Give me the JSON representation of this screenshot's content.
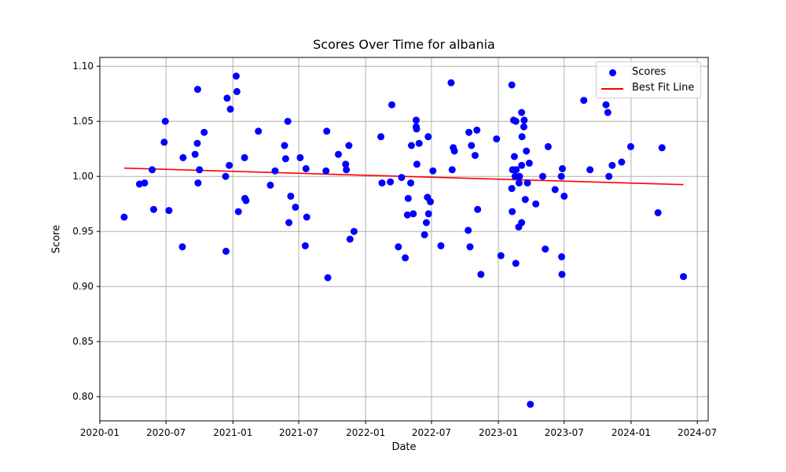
{
  "chart_data": {
    "type": "scatter",
    "title": "Scores Over Time for albania",
    "xlabel": "Date",
    "ylabel": "Score",
    "xlim": [
      "2020-01-01",
      "2024-07-31"
    ],
    "ylim": [
      0.778,
      1.108
    ],
    "x_ticks": [
      "2020-01",
      "2020-07",
      "2021-01",
      "2021-07",
      "2022-01",
      "2022-07",
      "2023-01",
      "2023-07",
      "2024-01",
      "2024-07"
    ],
    "y_ticks": [
      "0.80",
      "0.85",
      "0.90",
      "0.95",
      "1.00",
      "1.05",
      "1.10"
    ],
    "grid": true,
    "legend_position": "top-right",
    "colors": {
      "scores": "#0000ff",
      "best_fit": "#ff0000",
      "grid": "#b0b0b0"
    },
    "series": [
      {
        "name": "Scores",
        "kind": "scatter",
        "points": [
          [
            "2020-03-08",
            0.963
          ],
          [
            "2020-04-19",
            0.993
          ],
          [
            "2020-05-03",
            0.994
          ],
          [
            "2020-05-24",
            1.006
          ],
          [
            "2020-05-28",
            0.97
          ],
          [
            "2020-06-26",
            1.031
          ],
          [
            "2020-06-29",
            1.05
          ],
          [
            "2020-07-09",
            0.969
          ],
          [
            "2020-08-15",
            0.936
          ],
          [
            "2020-08-17",
            1.017
          ],
          [
            "2020-09-19",
            1.02
          ],
          [
            "2020-09-25",
            1.03
          ],
          [
            "2020-09-26",
            1.079
          ],
          [
            "2020-09-27",
            0.994
          ],
          [
            "2020-10-01",
            1.006
          ],
          [
            "2020-10-14",
            1.04
          ],
          [
            "2020-12-12",
            1.0
          ],
          [
            "2020-12-13",
            0.932
          ],
          [
            "2020-12-16",
            1.071
          ],
          [
            "2020-12-22",
            1.01
          ],
          [
            "2020-12-25",
            1.061
          ],
          [
            "2021-01-10",
            1.091
          ],
          [
            "2021-01-12",
            1.077
          ],
          [
            "2021-01-16",
            0.968
          ],
          [
            "2021-02-02",
            1.017
          ],
          [
            "2021-02-03",
            0.98
          ],
          [
            "2021-02-06",
            0.978
          ],
          [
            "2021-03-12",
            1.041
          ],
          [
            "2021-04-14",
            0.992
          ],
          [
            "2021-04-27",
            1.005
          ],
          [
            "2021-05-23",
            1.028
          ],
          [
            "2021-05-26",
            1.016
          ],
          [
            "2021-06-01",
            1.05
          ],
          [
            "2021-06-04",
            0.958
          ],
          [
            "2021-06-09",
            0.982
          ],
          [
            "2021-06-22",
            0.972
          ],
          [
            "2021-07-05",
            1.017
          ],
          [
            "2021-07-19",
            0.937
          ],
          [
            "2021-07-21",
            1.007
          ],
          [
            "2021-07-23",
            0.963
          ],
          [
            "2021-09-14",
            1.005
          ],
          [
            "2021-09-16",
            1.041
          ],
          [
            "2021-09-19",
            0.908
          ],
          [
            "2021-10-18",
            1.02
          ],
          [
            "2021-11-07",
            1.011
          ],
          [
            "2021-11-09",
            1.006
          ],
          [
            "2021-11-16",
            1.028
          ],
          [
            "2021-11-19",
            0.943
          ],
          [
            "2021-11-30",
            0.95
          ],
          [
            "2022-02-12",
            1.036
          ],
          [
            "2022-02-15",
            0.994
          ],
          [
            "2022-03-10",
            0.995
          ],
          [
            "2022-03-14",
            1.065
          ],
          [
            "2022-04-01",
            0.936
          ],
          [
            "2022-04-10",
            0.999
          ],
          [
            "2022-04-20",
            0.926
          ],
          [
            "2022-04-26",
            0.965
          ],
          [
            "2022-04-28",
            0.98
          ],
          [
            "2022-05-05",
            0.994
          ],
          [
            "2022-05-07",
            1.028
          ],
          [
            "2022-05-12",
            0.966
          ],
          [
            "2022-05-20",
            1.051
          ],
          [
            "2022-05-20",
            1.045
          ],
          [
            "2022-05-21",
            1.043
          ],
          [
            "2022-05-22",
            1.011
          ],
          [
            "2022-05-28",
            1.03
          ],
          [
            "2022-06-12",
            0.947
          ],
          [
            "2022-06-17",
            0.958
          ],
          [
            "2022-06-20",
            0.981
          ],
          [
            "2022-06-22",
            1.036
          ],
          [
            "2022-06-23",
            0.966
          ],
          [
            "2022-06-28",
            0.977
          ],
          [
            "2022-07-05",
            1.005
          ],
          [
            "2022-07-27",
            0.937
          ],
          [
            "2022-08-24",
            1.085
          ],
          [
            "2022-08-27",
            1.006
          ],
          [
            "2022-08-30",
            1.026
          ],
          [
            "2022-09-02",
            1.023
          ],
          [
            "2022-10-10",
            0.951
          ],
          [
            "2022-10-12",
            1.04
          ],
          [
            "2022-10-15",
            0.936
          ],
          [
            "2022-10-19",
            1.028
          ],
          [
            "2022-10-29",
            1.019
          ],
          [
            "2022-11-03",
            1.042
          ],
          [
            "2022-11-05",
            0.97
          ],
          [
            "2022-11-14",
            0.911
          ],
          [
            "2022-12-27",
            1.034
          ],
          [
            "2023-01-08",
            0.928
          ],
          [
            "2023-02-07",
            1.083
          ],
          [
            "2023-02-07",
            0.989
          ],
          [
            "2023-02-08",
            0.968
          ],
          [
            "2023-02-09",
            1.006
          ],
          [
            "2023-02-12",
            1.051
          ],
          [
            "2023-02-14",
            1.018
          ],
          [
            "2023-02-16",
            1.0
          ],
          [
            "2023-02-18",
            1.05
          ],
          [
            "2023-02-18",
            0.921
          ],
          [
            "2023-02-19",
            1.006
          ],
          [
            "2023-02-26",
            0.954
          ],
          [
            "2023-02-27",
            0.994
          ],
          [
            "2023-02-28",
            1.0
          ],
          [
            "2023-03-06",
            0.958
          ],
          [
            "2023-03-06",
            1.058
          ],
          [
            "2023-03-06",
            1.01
          ],
          [
            "2023-03-07",
            1.036
          ],
          [
            "2023-03-12",
            1.045
          ],
          [
            "2023-03-13",
            1.051
          ],
          [
            "2023-03-16",
            0.979
          ],
          [
            "2023-03-19",
            1.023
          ],
          [
            "2023-03-22",
            0.994
          ],
          [
            "2023-03-27",
            1.012
          ],
          [
            "2023-03-30",
            0.793
          ],
          [
            "2023-04-14",
            0.975
          ],
          [
            "2023-05-03",
            1.0
          ],
          [
            "2023-05-10",
            0.934
          ],
          [
            "2023-05-18",
            1.027
          ],
          [
            "2023-06-06",
            0.988
          ],
          [
            "2023-06-23",
            1.0
          ],
          [
            "2023-06-24",
            0.927
          ],
          [
            "2023-06-25",
            0.911
          ],
          [
            "2023-06-26",
            1.007
          ],
          [
            "2023-07-01",
            0.982
          ],
          [
            "2023-08-24",
            1.069
          ],
          [
            "2023-09-10",
            1.006
          ],
          [
            "2023-10-24",
            1.065
          ],
          [
            "2023-10-29",
            1.058
          ],
          [
            "2023-11-01",
            1.0
          ],
          [
            "2023-11-10",
            1.01
          ],
          [
            "2023-12-06",
            1.013
          ],
          [
            "2023-12-31",
            1.027
          ],
          [
            "2024-03-15",
            0.967
          ],
          [
            "2024-03-26",
            1.026
          ],
          [
            "2024-05-24",
            0.909
          ]
        ]
      },
      {
        "name": "Best Fit Line",
        "kind": "line",
        "points": [
          [
            "2020-03-08",
            1.0075
          ],
          [
            "2024-05-24",
            0.9925
          ]
        ]
      }
    ]
  }
}
